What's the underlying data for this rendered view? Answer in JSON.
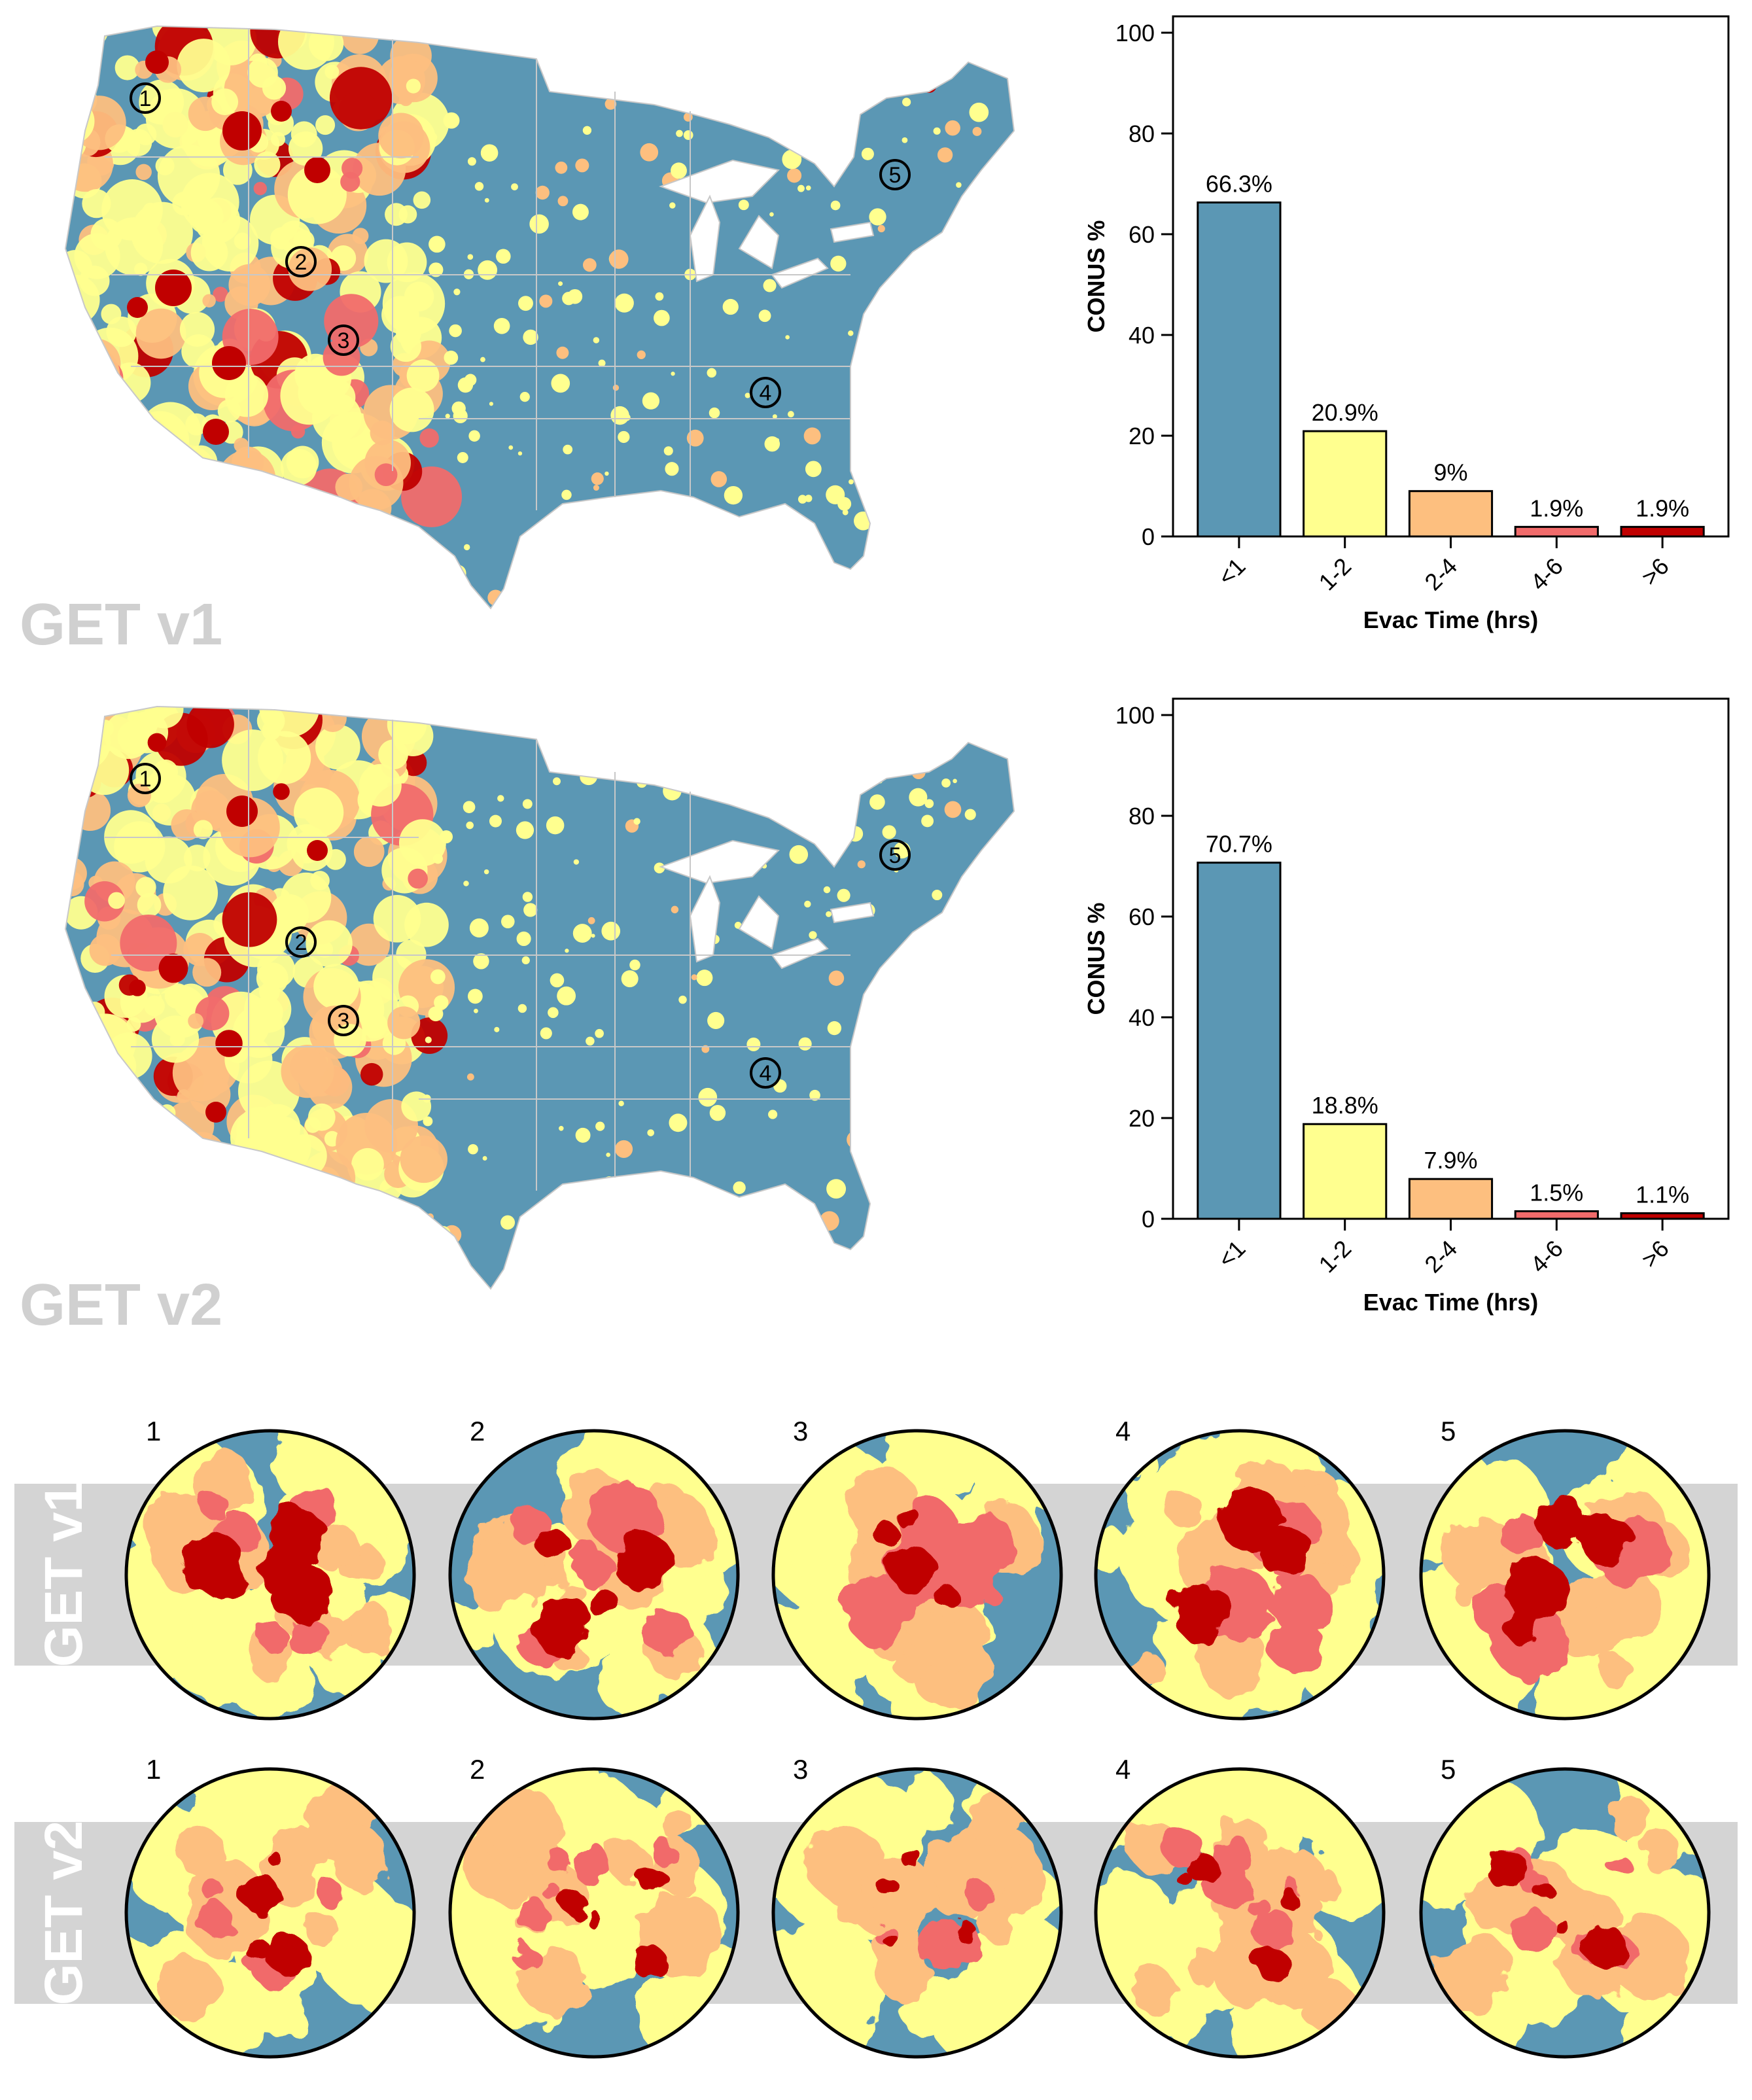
{
  "colors": {
    "lt1": "#5b97b4",
    "t1_2": "#ffff8f",
    "t2_4": "#fdbf7f",
    "t4_6": "#f16b6b",
    "gt6": "#c00000",
    "band": "#d4d4d4",
    "state_lines": "#c8c8c8",
    "version_text_gray": "#d0d0d0"
  },
  "maps": [
    {
      "version_label": "GET v1",
      "markers": [
        "1",
        "2",
        "3",
        "4",
        "5"
      ]
    },
    {
      "version_label": "GET v2",
      "markers": [
        "1",
        "2",
        "3",
        "4",
        "5"
      ]
    }
  ],
  "chart_data": [
    {
      "type": "bar",
      "title": "",
      "categories": [
        "<1",
        "1-2",
        "2-4",
        "4-6",
        ">6"
      ],
      "values": [
        66.3,
        20.9,
        9,
        1.9,
        1.9
      ],
      "data_labels": [
        "66.3%",
        "20.9%",
        "9%",
        "1.9%",
        "1.9%"
      ],
      "xlabel": "Evac Time (hrs)",
      "ylabel": "CONUS %",
      "ylim": [
        0,
        100
      ],
      "yticks": [
        "0",
        "20",
        "40",
        "60",
        "80",
        "100"
      ],
      "version": "GET v1"
    },
    {
      "type": "bar",
      "title": "",
      "categories": [
        "<1",
        "1-2",
        "2-4",
        "4-6",
        ">6"
      ],
      "values": [
        70.7,
        18.8,
        7.9,
        1.5,
        1.1
      ],
      "data_labels": [
        "70.7%",
        "18.8%",
        "7.9%",
        "1.5%",
        "1.1%"
      ],
      "xlabel": "Evac Time (hrs)",
      "ylabel": "CONUS %",
      "ylim": [
        0,
        100
      ],
      "yticks": [
        "0",
        "20",
        "40",
        "60",
        "80",
        "100"
      ],
      "version": "GET v2"
    }
  ],
  "zoom_rows": [
    {
      "band_label": "GET v1",
      "circles": [
        "1",
        "2",
        "3",
        "4",
        "5"
      ]
    },
    {
      "band_label": "GET v2",
      "circles": [
        "1",
        "2",
        "3",
        "4",
        "5"
      ]
    }
  ]
}
